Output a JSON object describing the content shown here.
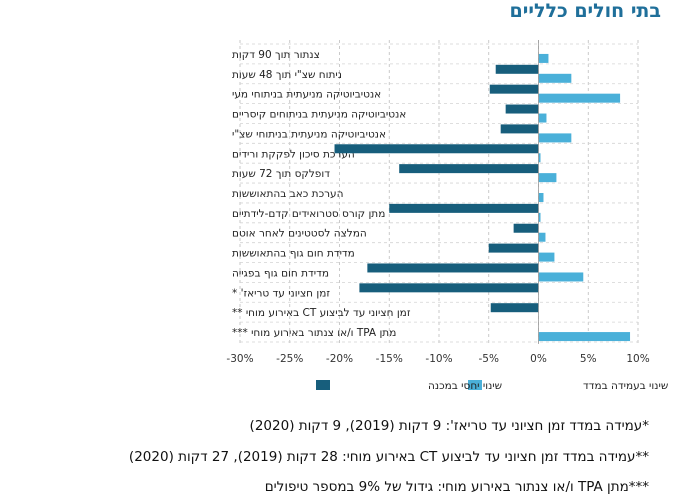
{
  "chart_data": {
    "type": "bar",
    "orientation": "horizontal",
    "title": "בתי חולים כלליים",
    "categories": [
      "צנתור תוך 90 דקות",
      "ניתוח שצ\"י תוך 48 שעות",
      "אנטיביוטיקה מניעתית בניתוחי מעי",
      "אנטיביוטיקה מניעתית בניתוחים קיסריים",
      "אנטיביוטיקה מניעתית בניתוחי שצ\"י",
      "הערכת סיכון לפקקת ורידים",
      "דופלקס תוך 72 שעות",
      "הערכת כאב בהתאוששות",
      "מתן קורס סטרואידים קדם-לידתיים",
      "המלצה לסטטינים לאחר אוטם",
      "מדידת חום גוף בהתאוששות",
      "מדידת חום גוף בפגייה",
      "זמן חציוני עד טריאז' *",
      "זמן חציוני עד לביצוע CT באירוע מוחי **",
      "מתן TPA ו/או צנתור באירוע מוחי ***"
    ],
    "series": [
      {
        "name": "שינוי בעמידה במדד",
        "color": "#4ab0d9",
        "values": [
          1.0,
          3.3,
          8.2,
          0.8,
          3.3,
          0.2,
          1.8,
          0.5,
          0.2,
          0.7,
          1.6,
          4.5,
          0,
          0,
          9.2
        ]
      },
      {
        "name": "שינוי יחסי במכנה",
        "color": "#175e7c",
        "values": [
          0,
          -4.3,
          -4.9,
          -3.3,
          -3.8,
          -20.5,
          -14.0,
          0,
          -15.0,
          -2.5,
          -5.0,
          -17.2,
          -18.0,
          -4.8,
          0
        ]
      }
    ],
    "xlim": [
      -30,
      10
    ],
    "xticks": [
      "-30%",
      "-25%",
      "-20%",
      "-15%",
      "-10%",
      "-5%",
      "0%",
      "5%",
      "10%"
    ],
    "grid": true,
    "legend": "bottom"
  },
  "notes": [
    "*עמידה במדד זמן חציוני עד טריאז': 9 דקות (2019), 9 דקות (2020)",
    "**עמידה במדד זמן חציוני עד לביצוע CT באירוע מוחי: 28 דקות (2019), 27 דקות (2020)",
    "***מתן TPA ו/או צנתור באירוע מוחי: גידול של 9% במספר טיפולים"
  ]
}
